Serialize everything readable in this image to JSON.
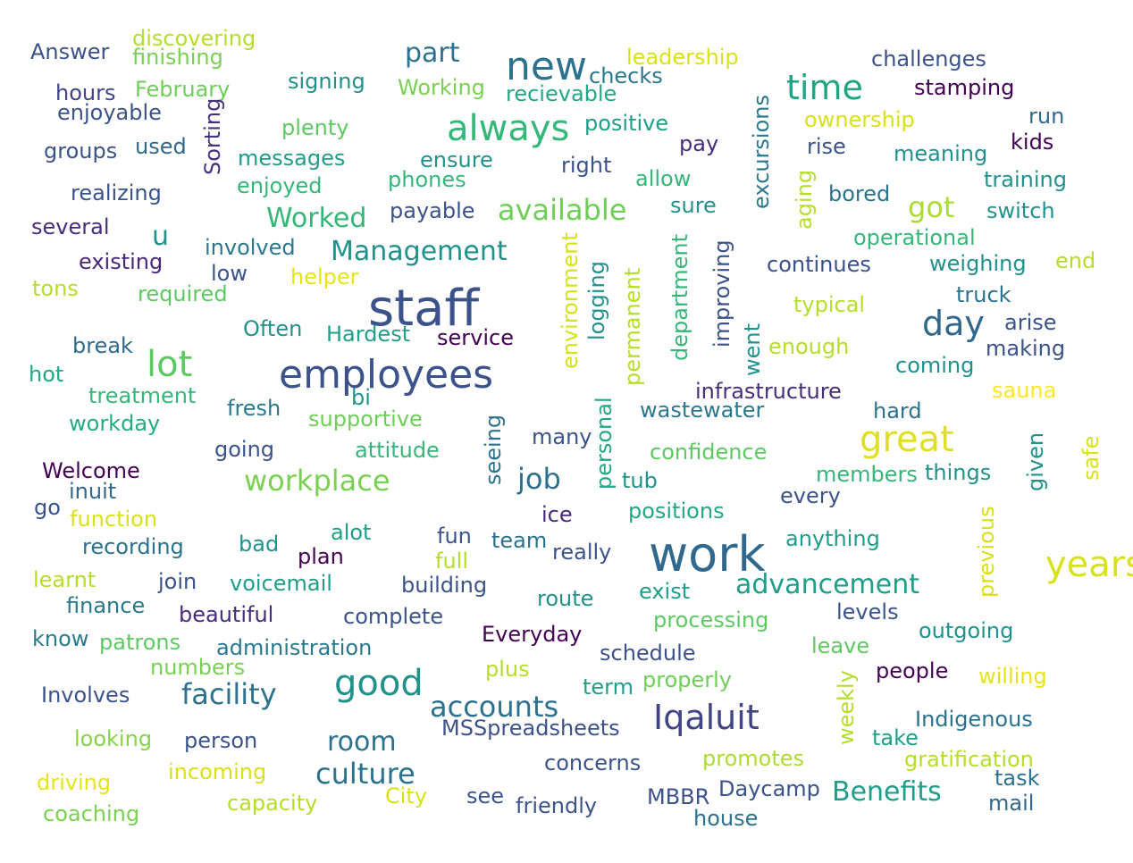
{
  "words": [
    {
      "text": "staff",
      "color": "#3b528b"
    },
    {
      "text": "employees",
      "color": "#3b528b"
    },
    {
      "text": "work",
      "color": "#31688e"
    },
    {
      "text": "new",
      "color": "#2c728e"
    },
    {
      "text": "always",
      "color": "#35b779"
    },
    {
      "text": "time",
      "color": "#21a585"
    },
    {
      "text": "great",
      "color": "#e0e022"
    },
    {
      "text": "good",
      "color": "#21918c"
    },
    {
      "text": "lot",
      "color": "#5ec962"
    },
    {
      "text": "day",
      "color": "#31688e"
    },
    {
      "text": "Iqaluit",
      "color": "#414487"
    },
    {
      "text": "years",
      "color": "#d8e219"
    },
    {
      "text": "Management",
      "color": "#21918c"
    },
    {
      "text": "facility",
      "color": "#2c728e"
    },
    {
      "text": "workplace",
      "color": "#7ad151"
    },
    {
      "text": "available",
      "color": "#6ece58"
    },
    {
      "text": "advancement",
      "color": "#1f9e89"
    },
    {
      "text": "accounts",
      "color": "#2c728e"
    },
    {
      "text": "culture",
      "color": "#2c728e"
    },
    {
      "text": "Benefits",
      "color": "#1f9e89"
    },
    {
      "text": "room",
      "color": "#2c728e"
    },
    {
      "text": "job",
      "color": "#2c728e"
    },
    {
      "text": "Worked",
      "color": "#35b779"
    },
    {
      "text": "part",
      "color": "#2c728e"
    },
    {
      "text": "got",
      "color": "#addc30"
    },
    {
      "text": "u",
      "color": "#21918c"
    },
    {
      "text": "Answer",
      "color": "#3b528b"
    },
    {
      "text": "discovering",
      "color": "#b5de2b"
    },
    {
      "text": "finishing",
      "color": "#7ad151"
    },
    {
      "text": "hours",
      "color": "#414487"
    },
    {
      "text": "February",
      "color": "#6ece58"
    },
    {
      "text": "enjoyable",
      "color": "#3b528b"
    },
    {
      "text": "groups",
      "color": "#3b528b"
    },
    {
      "text": "used",
      "color": "#31688e"
    },
    {
      "text": "realizing",
      "color": "#3b528b"
    },
    {
      "text": "Sorting",
      "color": "#46327e",
      "rotate": true
    },
    {
      "text": "several",
      "color": "#472d7b"
    },
    {
      "text": "existing",
      "color": "#482878"
    },
    {
      "text": "tons",
      "color": "#b5de2b"
    },
    {
      "text": "break",
      "color": "#31688e"
    },
    {
      "text": "hot",
      "color": "#22a884"
    },
    {
      "text": "treatment",
      "color": "#35b779"
    },
    {
      "text": "workday",
      "color": "#25ab82"
    },
    {
      "text": "Welcome",
      "color": "#440154"
    },
    {
      "text": "inuit",
      "color": "#31688e"
    },
    {
      "text": "go",
      "color": "#3b528b"
    },
    {
      "text": "function",
      "color": "#d8e219"
    },
    {
      "text": "recording",
      "color": "#2c728e"
    },
    {
      "text": "learnt",
      "color": "#b5de2b"
    },
    {
      "text": "finance",
      "color": "#2a788e"
    },
    {
      "text": "know",
      "color": "#287c8e"
    },
    {
      "text": "patrons",
      "color": "#5ec962"
    },
    {
      "text": "numbers",
      "color": "#7ad151"
    },
    {
      "text": "Involves",
      "color": "#3b528b"
    },
    {
      "text": "looking",
      "color": "#86d549"
    },
    {
      "text": "driving",
      "color": "#e5e419"
    },
    {
      "text": "coaching",
      "color": "#7ad151"
    },
    {
      "text": "signing",
      "color": "#21918c"
    },
    {
      "text": "plenty",
      "color": "#5ec962"
    },
    {
      "text": "messages",
      "color": "#1f9e89"
    },
    {
      "text": "enjoyed",
      "color": "#35b779"
    },
    {
      "text": "involved",
      "color": "#2a788e"
    },
    {
      "text": "low",
      "color": "#3b528b"
    },
    {
      "text": "required",
      "color": "#5ec962"
    },
    {
      "text": "helper",
      "color": "#e5e419"
    },
    {
      "text": "Often",
      "color": "#21918c"
    },
    {
      "text": "Hardest",
      "color": "#1f9e89"
    },
    {
      "text": "bi",
      "color": "#21918c"
    },
    {
      "text": "fresh",
      "color": "#2a788e"
    },
    {
      "text": "supportive",
      "color": "#6ece58"
    },
    {
      "text": "going",
      "color": "#3b528b"
    },
    {
      "text": "attitude",
      "color": "#35b779"
    },
    {
      "text": "bad",
      "color": "#21918c"
    },
    {
      "text": "alot",
      "color": "#1f9e89"
    },
    {
      "text": "plan",
      "color": "#440154"
    },
    {
      "text": "join",
      "color": "#3b528b"
    },
    {
      "text": "voicemail",
      "color": "#1f9e89"
    },
    {
      "text": "beautiful",
      "color": "#472d7b"
    },
    {
      "text": "administration",
      "color": "#2a788e"
    },
    {
      "text": "complete",
      "color": "#3b528b"
    },
    {
      "text": "person",
      "color": "#3b528b"
    },
    {
      "text": "incoming",
      "color": "#d8e219"
    },
    {
      "text": "capacity",
      "color": "#b5de2b"
    },
    {
      "text": "City",
      "color": "#d8e219"
    },
    {
      "text": "see",
      "color": "#3b528b"
    },
    {
      "text": "friendly",
      "color": "#3b528b"
    },
    {
      "text": "Working",
      "color": "#7ad151"
    },
    {
      "text": "checks",
      "color": "#2a788e"
    },
    {
      "text": "recievable",
      "color": "#22a884"
    },
    {
      "text": "leadership",
      "color": "#d8e219"
    },
    {
      "text": "positive",
      "color": "#1f9e89"
    },
    {
      "text": "ensure",
      "color": "#21918c"
    },
    {
      "text": "phones",
      "color": "#35b779"
    },
    {
      "text": "payable",
      "color": "#3b528b"
    },
    {
      "text": "right",
      "color": "#3b528b"
    },
    {
      "text": "allow",
      "color": "#35b779"
    },
    {
      "text": "pay",
      "color": "#472d7b"
    },
    {
      "text": "sure",
      "color": "#21918c"
    },
    {
      "text": "environment",
      "color": "#d8e219",
      "rotate": true
    },
    {
      "text": "logging",
      "color": "#21918c",
      "rotate": true
    },
    {
      "text": "permanent",
      "color": "#b5de2b",
      "rotate": true
    },
    {
      "text": "department",
      "color": "#35b779",
      "rotate": true
    },
    {
      "text": "improving",
      "color": "#3b528b",
      "rotate": true
    },
    {
      "text": "excursions",
      "color": "#2a788e",
      "rotate": true
    },
    {
      "text": "aging",
      "color": "#b5de2b",
      "rotate": true
    },
    {
      "text": "went",
      "color": "#21918c",
      "rotate": true
    },
    {
      "text": "service",
      "color": "#440154"
    },
    {
      "text": "seeing",
      "color": "#2c728e",
      "rotate": true
    },
    {
      "text": "personal",
      "color": "#22a884",
      "rotate": true
    },
    {
      "text": "many",
      "color": "#3b528b"
    },
    {
      "text": "tub",
      "color": "#21918c"
    },
    {
      "text": "ice",
      "color": "#482878"
    },
    {
      "text": "fun",
      "color": "#3b528b"
    },
    {
      "text": "team",
      "color": "#2c728e"
    },
    {
      "text": "full",
      "color": "#b5de2b"
    },
    {
      "text": "really",
      "color": "#3b528b"
    },
    {
      "text": "building",
      "color": "#3b528b"
    },
    {
      "text": "route",
      "color": "#21918c"
    },
    {
      "text": "Everyday",
      "color": "#440154"
    },
    {
      "text": "plus",
      "color": "#b5de2b"
    },
    {
      "text": "schedule",
      "color": "#3b528b"
    },
    {
      "text": "term",
      "color": "#1f9e89"
    },
    {
      "text": "properly",
      "color": "#6ece58"
    },
    {
      "text": "MSSpreadsheets",
      "color": "#3b528b"
    },
    {
      "text": "concerns",
      "color": "#3b528b"
    },
    {
      "text": "MBBR",
      "color": "#3b528b"
    },
    {
      "text": "Daycamp",
      "color": "#3b528b"
    },
    {
      "text": "house",
      "color": "#2c728e"
    },
    {
      "text": "wastewater",
      "color": "#2a788e"
    },
    {
      "text": "infrastructure",
      "color": "#472d7b"
    },
    {
      "text": "confidence",
      "color": "#5ec962"
    },
    {
      "text": "positions",
      "color": "#22a884"
    },
    {
      "text": "every",
      "color": "#3b528b"
    },
    {
      "text": "anything",
      "color": "#1f9e89"
    },
    {
      "text": "exist",
      "color": "#1f9e89"
    },
    {
      "text": "processing",
      "color": "#5ec962"
    },
    {
      "text": "leave",
      "color": "#5ec962"
    },
    {
      "text": "levels",
      "color": "#3b528b"
    },
    {
      "text": "weekly",
      "color": "#b5de2b",
      "rotate": true
    },
    {
      "text": "promotes",
      "color": "#addc30"
    },
    {
      "text": "challenges",
      "color": "#3b528b"
    },
    {
      "text": "stamping",
      "color": "#440154"
    },
    {
      "text": "ownership",
      "color": "#d8e219"
    },
    {
      "text": "run",
      "color": "#31688e"
    },
    {
      "text": "rise",
      "color": "#3b528b"
    },
    {
      "text": "kids",
      "color": "#440154"
    },
    {
      "text": "meaning",
      "color": "#21918c"
    },
    {
      "text": "training",
      "color": "#21918c"
    },
    {
      "text": "bored",
      "color": "#2c728e"
    },
    {
      "text": "switch",
      "color": "#21918c"
    },
    {
      "text": "operational",
      "color": "#35b779"
    },
    {
      "text": "continues",
      "color": "#3b528b"
    },
    {
      "text": "weighing",
      "color": "#21918c"
    },
    {
      "text": "end",
      "color": "#b5de2b"
    },
    {
      "text": "truck",
      "color": "#2c728e"
    },
    {
      "text": "typical",
      "color": "#b5de2b"
    },
    {
      "text": "arise",
      "color": "#3b528b"
    },
    {
      "text": "enough",
      "color": "#b5de2b"
    },
    {
      "text": "making",
      "color": "#3b528b"
    },
    {
      "text": "coming",
      "color": "#21918c"
    },
    {
      "text": "sauna",
      "color": "#fde725"
    },
    {
      "text": "hard",
      "color": "#2c728e"
    },
    {
      "text": "given",
      "color": "#21918c",
      "rotate": true
    },
    {
      "text": "safe",
      "color": "#d8e219",
      "rotate": true
    },
    {
      "text": "members",
      "color": "#35b779"
    },
    {
      "text": "things",
      "color": "#21918c"
    },
    {
      "text": "previous",
      "color": "#d8e219",
      "rotate": true
    },
    {
      "text": "outgoing",
      "color": "#21918c"
    },
    {
      "text": "people",
      "color": "#440154"
    },
    {
      "text": "willing",
      "color": "#e5e419"
    },
    {
      "text": "Indigenous",
      "color": "#2c728e"
    },
    {
      "text": "take",
      "color": "#1f9e89"
    },
    {
      "text": "gratification",
      "color": "#b5de2b"
    },
    {
      "text": "task",
      "color": "#2c728e"
    },
    {
      "text": "mail",
      "color": "#31688e"
    }
  ]
}
